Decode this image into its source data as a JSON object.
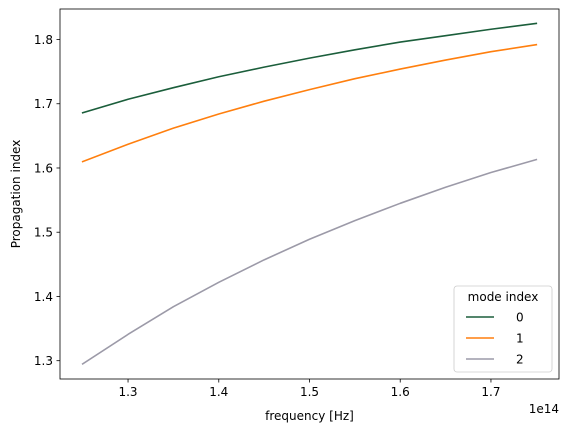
{
  "chart_data": {
    "type": "line",
    "xlabel": "frequency [Hz]",
    "ylabel": "Propagation index",
    "x_offset_label": "1e14",
    "xlim": [
      1.225,
      1.775
    ],
    "ylim": [
      1.2715,
      1.8475
    ],
    "xticks": [
      1.3,
      1.4,
      1.5,
      1.6,
      1.7
    ],
    "xtick_labels": [
      "1.3",
      "1.4",
      "1.5",
      "1.6",
      "1.7"
    ],
    "yticks": [
      1.3,
      1.4,
      1.5,
      1.6,
      1.7,
      1.8
    ],
    "ytick_labels": [
      "1.3",
      "1.4",
      "1.5",
      "1.6",
      "1.7",
      "1.8"
    ],
    "grid": false,
    "legend": {
      "title": "mode index",
      "placement": "lower-right"
    },
    "x": [
      1.25,
      1.3,
      1.35,
      1.4,
      1.45,
      1.5,
      1.55,
      1.6,
      1.65,
      1.7,
      1.75
    ],
    "series": [
      {
        "name": "0",
        "color": "#1b5e3b",
        "values": [
          1.686,
          1.707,
          1.725,
          1.742,
          1.757,
          1.771,
          1.784,
          1.796,
          1.806,
          1.816,
          1.825
        ]
      },
      {
        "name": "1",
        "color": "#ff7f0e",
        "values": [
          1.61,
          1.637,
          1.662,
          1.684,
          1.704,
          1.722,
          1.739,
          1.754,
          1.768,
          1.781,
          1.792
        ]
      },
      {
        "name": "2",
        "color": "#9c9aa8",
        "values": [
          1.295,
          1.341,
          1.384,
          1.422,
          1.457,
          1.489,
          1.518,
          1.545,
          1.57,
          1.593,
          1.613
        ]
      }
    ]
  }
}
